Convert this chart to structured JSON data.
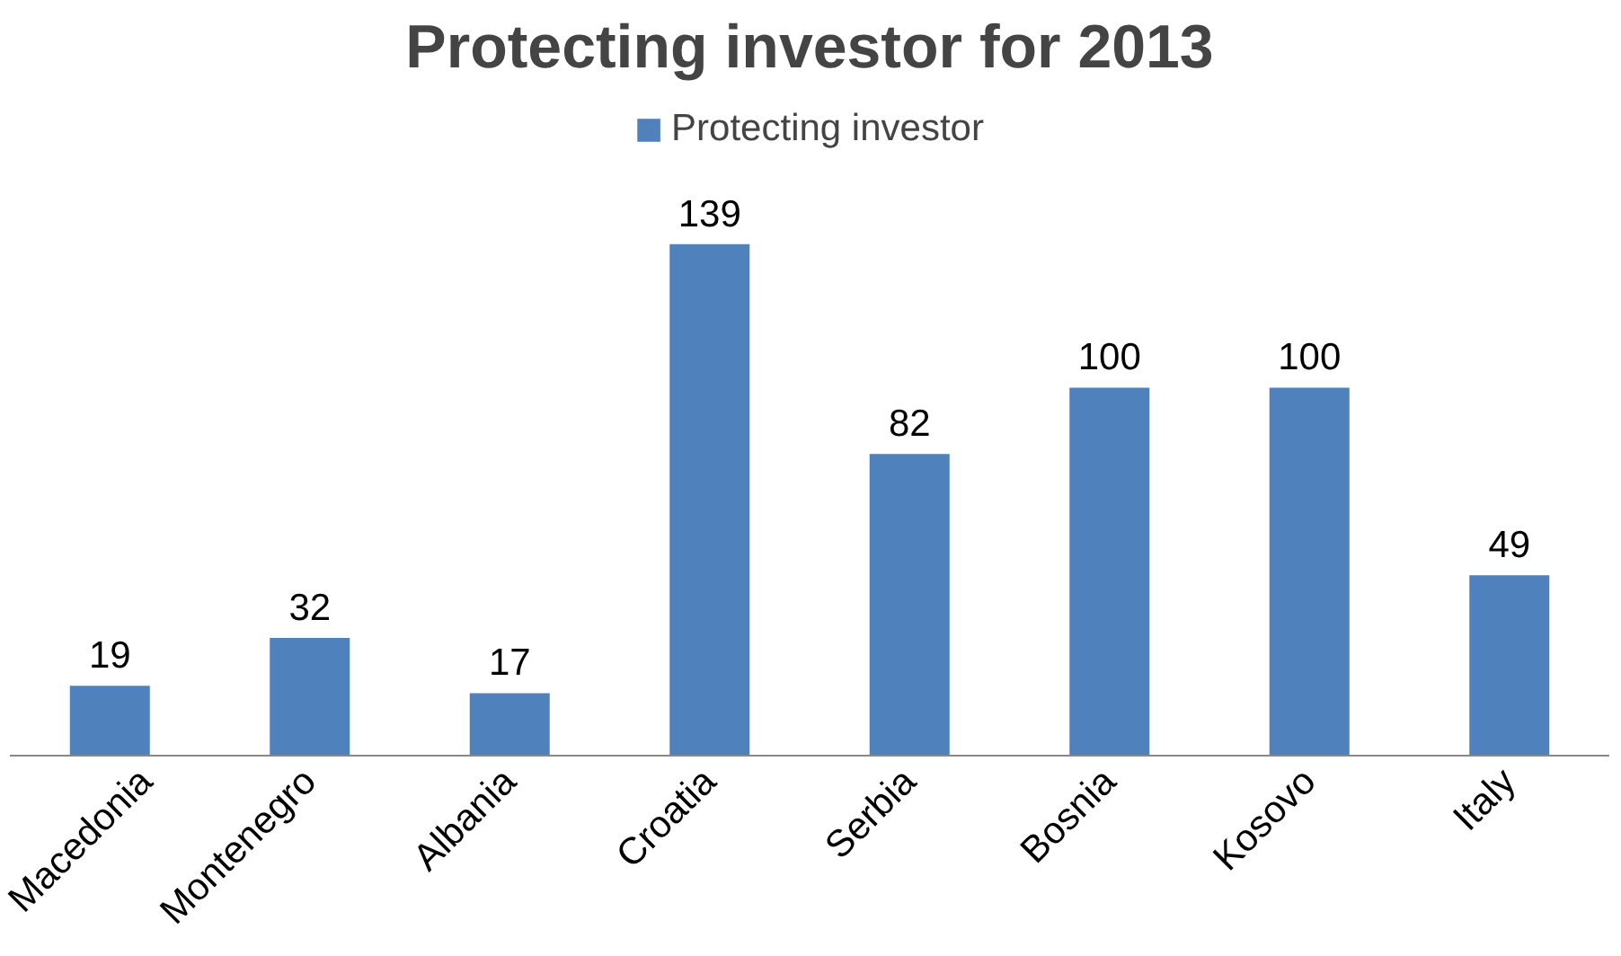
{
  "chart_data": {
    "type": "bar",
    "title": "Protecting investor for 2013",
    "categories": [
      "Macedonia",
      "Montenegro",
      "Albania",
      "Croatia",
      "Serbia",
      "Bosnia",
      "Kosovo",
      "Italy"
    ],
    "series": [
      {
        "name": "Protecting investor",
        "color": "#4f81bd",
        "values": [
          19,
          32,
          17,
          139,
          82,
          100,
          100,
          49
        ]
      }
    ],
    "data_labels": true,
    "legend": "top",
    "grid": false
  }
}
